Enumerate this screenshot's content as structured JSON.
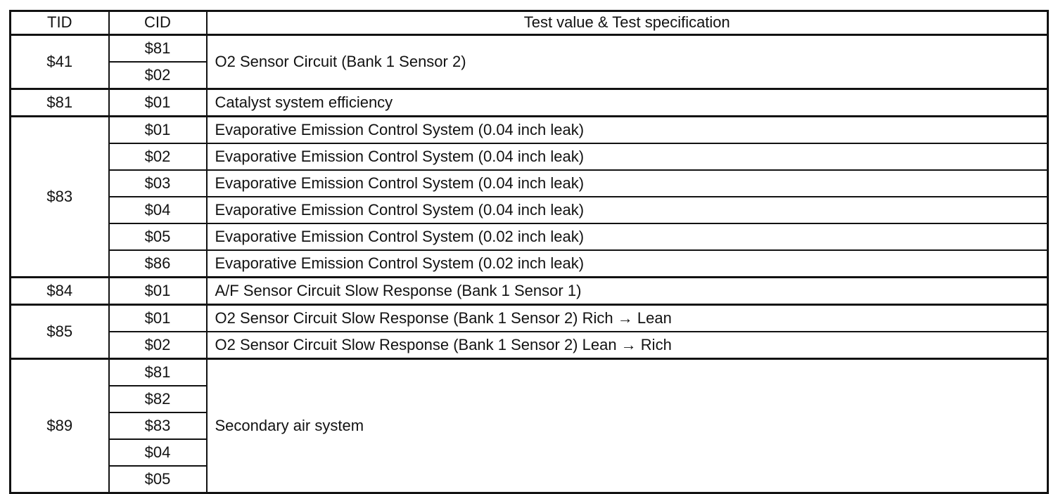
{
  "table": {
    "header": {
      "tid": "TID",
      "cid": "CID",
      "spec": "Test value & Test specification"
    },
    "groups": [
      {
        "tid": "$41",
        "spec": "O2 Sensor Circuit (Bank 1 Sensor 2)",
        "cids": [
          "$81",
          "$02"
        ]
      },
      {
        "tid": "$81",
        "rows": [
          {
            "cid": "$01",
            "spec": "Catalyst system efficiency"
          }
        ]
      },
      {
        "tid": "$83",
        "rows": [
          {
            "cid": "$01",
            "spec": "Evaporative Emission Control System (0.04 inch leak)"
          },
          {
            "cid": "$02",
            "spec": "Evaporative Emission Control System (0.04 inch leak)"
          },
          {
            "cid": "$03",
            "spec": "Evaporative Emission Control System (0.04 inch leak)"
          },
          {
            "cid": "$04",
            "spec": "Evaporative Emission Control System (0.04 inch leak)"
          },
          {
            "cid": "$05",
            "spec": "Evaporative Emission Control System (0.02 inch leak)"
          },
          {
            "cid": "$86",
            "spec": "Evaporative Emission Control System (0.02 inch leak)"
          }
        ]
      },
      {
        "tid": "$84",
        "rows": [
          {
            "cid": "$01",
            "spec": "A/F Sensor Circuit Slow Response (Bank 1 Sensor 1)"
          }
        ]
      },
      {
        "tid": "$85",
        "rows": [
          {
            "cid": "$01",
            "spec": "O2 Sensor Circuit Slow Response (Bank 1 Sensor 2) Rich → Lean"
          },
          {
            "cid": "$02",
            "spec": "O2 Sensor Circuit Slow Response (Bank 1 Sensor 2) Lean → Rich"
          }
        ]
      },
      {
        "tid": "$89",
        "spec": "Secondary air system",
        "cids": [
          "$81",
          "$82",
          "$83",
          "$04",
          "$05"
        ]
      }
    ]
  }
}
